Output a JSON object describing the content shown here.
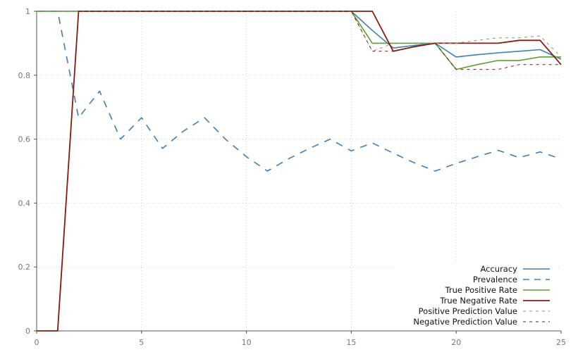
{
  "chart_data": {
    "type": "line",
    "xlim": [
      0,
      25
    ],
    "ylim": [
      0,
      1
    ],
    "x_ticks": [
      "0",
      "5",
      "10",
      "15",
      "20",
      "25"
    ],
    "y_ticks": [
      "0",
      "0.2",
      "0.4",
      "0.6",
      "0.8",
      "1"
    ],
    "grid": true,
    "legend_position": "bottom-right",
    "x": [
      0,
      1,
      2,
      3,
      4,
      5,
      6,
      7,
      8,
      9,
      10,
      11,
      12,
      13,
      14,
      15,
      16,
      17,
      18,
      19,
      20,
      21,
      22,
      23,
      24,
      25
    ],
    "series": [
      {
        "name": "Accuracy",
        "color": "#3e7fb5",
        "style": "solid",
        "width": 1.6,
        "values": [
          1,
          1,
          1,
          1,
          1,
          1,
          1,
          1,
          1,
          1,
          1,
          1,
          1,
          1,
          1,
          1,
          0.94,
          0.885,
          0.893,
          0.9,
          0.857,
          0.864,
          0.87,
          0.875,
          0.88,
          0.85
        ]
      },
      {
        "name": "Prevalence",
        "color": "#3e7fb5",
        "style": "longdash",
        "width": 1.6,
        "values": [
          1,
          1,
          0.667,
          0.75,
          0.6,
          0.667,
          0.571,
          0.625,
          0.667,
          0.6,
          0.545,
          0.5,
          0.538,
          0.571,
          0.6,
          0.563,
          0.588,
          0.556,
          0.526,
          0.5,
          0.524,
          0.545,
          0.565,
          0.542,
          0.56,
          0.538
        ]
      },
      {
        "name": "True Positive Rate",
        "color": "#5e9e35",
        "style": "solid",
        "width": 1.6,
        "values": [
          1,
          1,
          1,
          1,
          1,
          1,
          1,
          1,
          1,
          1,
          1,
          1,
          1,
          1,
          1,
          1,
          0.9,
          0.9,
          0.9,
          0.9,
          0.818,
          0.833,
          0.846,
          0.846,
          0.857,
          0.857
        ]
      },
      {
        "name": "True Negative Rate",
        "color": "#8b1a10",
        "style": "solid",
        "width": 1.8,
        "values": [
          0,
          0,
          1,
          1,
          1,
          1,
          1,
          1,
          1,
          1,
          1,
          1,
          1,
          1,
          1,
          1,
          1,
          0.875,
          0.889,
          0.9,
          0.9,
          0.9,
          0.9,
          0.909,
          0.909,
          0.833
        ]
      },
      {
        "name": "Positive Prediction Value",
        "color": "#8a9a5b",
        "style": "shortdash",
        "width": 1,
        "values": [
          1,
          1,
          1,
          1,
          1,
          1,
          1,
          1,
          1,
          1,
          1,
          1,
          1,
          1,
          1,
          1,
          0.875,
          0.9,
          0.9,
          0.9,
          0.9,
          0.909,
          0.917,
          0.917,
          0.923,
          0.857
        ]
      },
      {
        "name": "Negative Prediction Value",
        "color": "#7a1a10",
        "style": "shortdash",
        "width": 1,
        "values": [
          0,
          0,
          1,
          1,
          1,
          1,
          1,
          1,
          1,
          1,
          1,
          1,
          1,
          1,
          1,
          1,
          0.875,
          0.875,
          0.889,
          0.9,
          0.818,
          0.818,
          0.818,
          0.833,
          0.833,
          0.833
        ]
      }
    ]
  }
}
